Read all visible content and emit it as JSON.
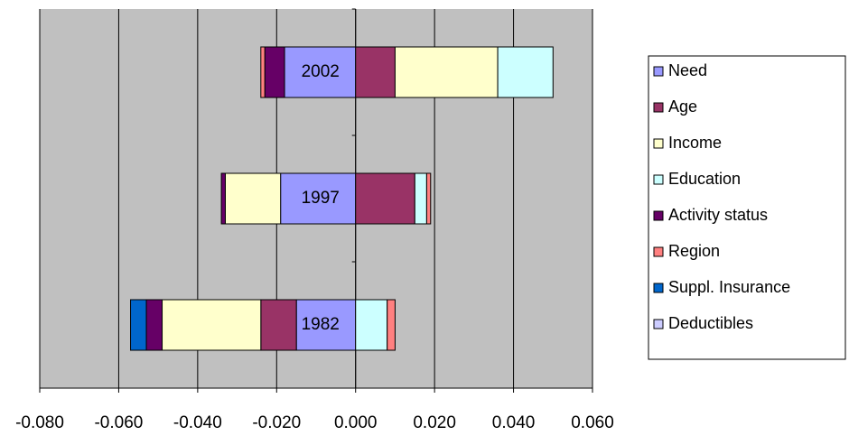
{
  "chart_data": {
    "type": "bar",
    "orientation": "horizontal",
    "stacked": true,
    "categories": [
      "1982",
      "1997",
      "2002"
    ],
    "series": [
      {
        "name": "Need",
        "color": "#9999ff",
        "values": [
          -0.015,
          -0.019,
          -0.018
        ]
      },
      {
        "name": "Age",
        "color": "#993366",
        "values": [
          -0.009,
          0.015,
          0.01
        ]
      },
      {
        "name": "Income",
        "color": "#ffffcc",
        "values": [
          -0.025,
          -0.014,
          0.026
        ]
      },
      {
        "name": "Education",
        "color": "#ccffff",
        "values": [
          0.008,
          0.003,
          0.014
        ]
      },
      {
        "name": "Activity status",
        "color": "#660066",
        "values": [
          -0.004,
          -0.001,
          -0.005
        ]
      },
      {
        "name": "Region",
        "color": "#ff8080",
        "values": [
          0.002,
          0.001,
          -0.001
        ]
      },
      {
        "name": "Suppl. Insurance",
        "color": "#0066cc",
        "values": [
          -0.004,
          0,
          0
        ]
      },
      {
        "name": "Deductibles",
        "color": "#ccccff",
        "values": [
          0,
          0,
          0
        ]
      }
    ],
    "xlim": [
      -0.08,
      0.06
    ],
    "xticks": [
      {
        "value": -0.08,
        "label": "-0.080"
      },
      {
        "value": -0.06,
        "label": "-0.060"
      },
      {
        "value": -0.04,
        "label": "-0.040"
      },
      {
        "value": -0.02,
        "label": "-0.020"
      },
      {
        "value": 0,
        "label": "0.000"
      },
      {
        "value": 0.02,
        "label": "0.020"
      },
      {
        "value": 0.04,
        "label": "0.040"
      },
      {
        "value": 0.06,
        "label": "0.060"
      }
    ],
    "grid": true,
    "legend": "right",
    "background": "#c0c0c0"
  }
}
